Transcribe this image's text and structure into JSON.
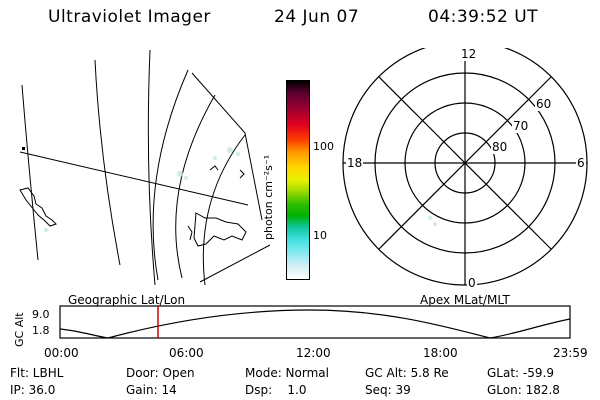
{
  "header": {
    "title": "Ultraviolet Imager",
    "date": "24 Jun 07",
    "time": "04:39:52 UT"
  },
  "colorbar": {
    "label": "photon cm⁻²s⁻¹",
    "ticks": [
      "100",
      "10"
    ]
  },
  "polar": {
    "mlt_labels": [
      "12",
      "18",
      "6",
      "0"
    ],
    "lat_labels": [
      "60",
      "70",
      "80"
    ]
  },
  "orbit": {
    "left_caption": "Geographic Lat/Lon",
    "right_caption": "Apex MLat/MLT",
    "axis_label": "GC Alt",
    "y_ticks": [
      "9.0",
      "1.8"
    ],
    "x_ticks": [
      "00:00",
      "06:00",
      "12:00",
      "18:00",
      "23:59"
    ]
  },
  "info": {
    "row1": [
      "Flt: LBHL",
      "Door: Open",
      "Mode: Normal",
      "GC Alt: 5.8 Re",
      "GLat: -59.9"
    ],
    "row2": [
      "IP: 36.0",
      "Gain: 14",
      "Dsp:    1.0",
      "Seq: 39",
      "GLon: 182.8"
    ]
  }
}
